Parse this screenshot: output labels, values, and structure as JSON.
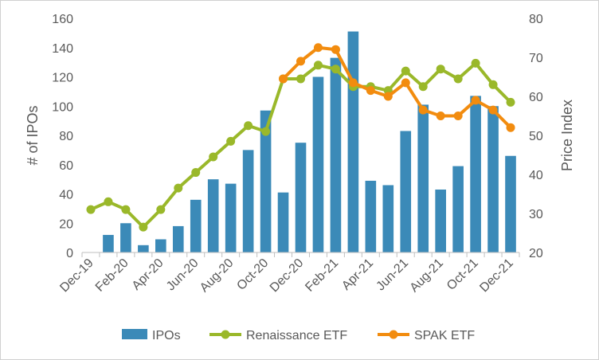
{
  "chart_data": {
    "type": "bar+line",
    "x": [
      "Dec-19",
      "Jan-20",
      "Feb-20",
      "Mar-20",
      "Apr-20",
      "May-20",
      "Jun-20",
      "Jul-20",
      "Aug-20",
      "Sep-20",
      "Oct-20",
      "Nov-20",
      "Dec-20",
      "Jan-21",
      "Feb-21",
      "Mar-21",
      "Apr-21",
      "May-21",
      "Jun-21",
      "Jul-21",
      "Aug-21",
      "Sep-21",
      "Oct-21",
      "Nov-21",
      "Dec-21"
    ],
    "xticklabels": [
      "Dec-19",
      "Feb-20",
      "Apr-20",
      "Jun-20",
      "Aug-20",
      "Oct-20",
      "Dec-20",
      "Feb-21",
      "Apr-21",
      "Jun-21",
      "Aug-21",
      "Oct-21",
      "Dec-21"
    ],
    "ylabel": "# of IPOs",
    "y2label": "Price Index",
    "ylim": [
      0,
      160
    ],
    "y2lim": [
      20,
      80
    ],
    "yticks": [
      "0",
      "20",
      "40",
      "60",
      "80",
      "100",
      "120",
      "140",
      "160"
    ],
    "y2ticks": [
      "20",
      "30",
      "40",
      "50",
      "60",
      "70",
      "80"
    ],
    "series": [
      {
        "name": "IPOs",
        "type": "bar",
        "axis": "left",
        "color": "#3b8ab8",
        "values": [
          0,
          12,
          20,
          5,
          9,
          18,
          36,
          50,
          47,
          70,
          97,
          41,
          75,
          120,
          133,
          151,
          49,
          46,
          83,
          101,
          43,
          59,
          107,
          100,
          66
        ]
      },
      {
        "name": "Renaissance ETF",
        "type": "line",
        "axis": "right",
        "color": "#9ab82a",
        "values": [
          null,
          null,
          null,
          null,
          null,
          null,
          null,
          null,
          null,
          null,
          null,
          null,
          null,
          null,
          null,
          null,
          null,
          null,
          null,
          null,
          null,
          null,
          null,
          null,
          null
        ]
      },
      {
        "name": "SPAK ETF",
        "type": "line",
        "axis": "right",
        "color": "#f28c0f",
        "values": [
          null,
          null,
          null,
          null,
          null,
          null,
          null,
          null,
          null,
          null,
          null,
          null,
          null,
          null,
          null,
          null,
          null,
          null,
          null,
          null,
          null,
          null,
          null,
          null,
          null
        ]
      }
    ],
    "legend": {
      "position": "bottom"
    },
    "grid": false
  }
}
